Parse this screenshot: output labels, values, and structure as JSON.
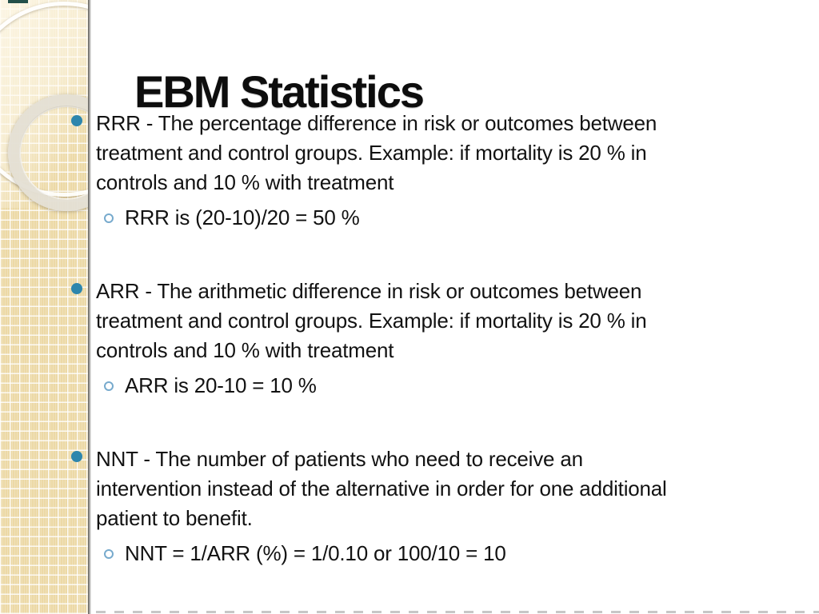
{
  "slide": {
    "title": "EBM Statistics",
    "bullets": [
      {
        "text": "RRR - The percentage difference in risk or outcomes between\ntreatment and control groups. Example: if mortality is 20 % in\ncontrols and 10 % with treatment",
        "sub": "RRR is (20-10)/20 = 50 %"
      },
      {
        "text": "ARR - The arithmetic difference in risk or outcomes between\ntreatment and control groups. Example: if mortality is 20 % in\ncontrols and 10 % with treatment",
        "sub": "ARR is 20-10 = 10 %"
      },
      {
        "text": "NNT - The number of patients who need to receive an\nintervention instead of the alternative in order for one additional\npatient to benefit.",
        "sub": "NNT = 1/ARR (%) = 1/0.10 or 100/10 = 10"
      }
    ]
  },
  "colors": {
    "bullet_accent": "#2d86ad",
    "sub_bullet_ring": "#77aacd",
    "sidebar_tan": "#ecd9a6",
    "text": "#121212",
    "top_edge_mark": "#23504b"
  },
  "icons": {
    "bullet": "filled-circle",
    "sub_bullet": "open-circle"
  }
}
